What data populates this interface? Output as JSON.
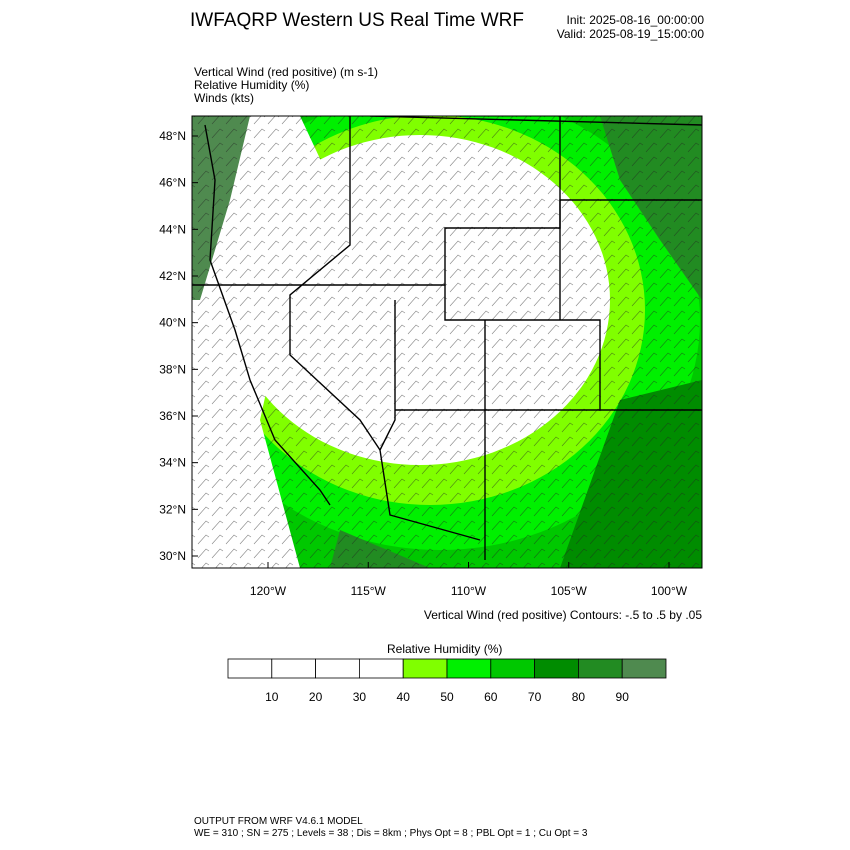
{
  "header": {
    "title": "IWFAQRP Western US Real Time WRF",
    "init": "Init: 2025-08-16_00:00:00",
    "valid": "Valid: 2025-08-19_15:00:00"
  },
  "fields": [
    "Vertical Wind (red positive)   (m s-1)",
    "Relative Humidity   (%)",
    "Winds   (kts)"
  ],
  "map": {
    "lat_labels": [
      "48°N",
      "46°N",
      "44°N",
      "42°N",
      "40°N",
      "38°N",
      "36°N",
      "34°N",
      "32°N",
      "30°N"
    ],
    "lon_labels": [
      "120°W",
      "115°W",
      "110°W",
      "105°W",
      "100°W"
    ],
    "contour_note": "Vertical Wind (red positive) Contours: -.5 to .5 by .05"
  },
  "colorbar": {
    "title": "Relative Humidity  (%)",
    "labels": [
      "10",
      "20",
      "30",
      "40",
      "50",
      "60",
      "70",
      "80",
      "90"
    ],
    "colors": [
      "#ffffff",
      "#ffffff",
      "#ffffff",
      "#ffffff",
      "#80ff00",
      "#00f000",
      "#00c800",
      "#008c00",
      "#228b22",
      "#4f8a4f"
    ]
  },
  "footer": {
    "line1": "OUTPUT FROM WRF V4.6.1 MODEL",
    "line2": "WE = 310 ; SN = 275 ; Levels = 38 ; Dis = 8km ; Phys Opt = 8 ; PBL Opt = 1 ; Cu Opt = 3"
  }
}
